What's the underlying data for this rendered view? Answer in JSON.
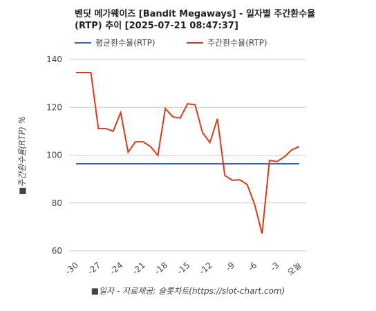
{
  "chart_data": {
    "type": "line",
    "title": "벤딧 메가웨이즈 [Bandit Megaways] - 일자별 주간환수율(RTP) 추이 [2025-07-21 08:47:37]",
    "y_label": "■주간환수율(RTP) %",
    "x_label": "■일자 - 자료제공: 슬롯차트(https://slot-chart.com)",
    "categories": [
      "-30",
      null,
      null,
      "-27",
      null,
      null,
      "-24",
      null,
      null,
      "-21",
      null,
      null,
      "-18",
      null,
      null,
      "-15",
      null,
      null,
      "-12",
      null,
      null,
      "-9",
      null,
      null,
      "-6",
      null,
      null,
      "-3",
      null,
      null,
      "오늘"
    ],
    "series": [
      {
        "name": "평균환수율(RTP)",
        "color": "#3366cc",
        "values": [
          96.4,
          96.4,
          96.4,
          96.4,
          96.4,
          96.4,
          96.4,
          96.4,
          96.4,
          96.4,
          96.4,
          96.4,
          96.4,
          96.4,
          96.4,
          96.4,
          96.4,
          96.4,
          96.4,
          96.4,
          96.4,
          96.4,
          96.4,
          96.4,
          96.4,
          96.4,
          96.4,
          96.4,
          96.4,
          96.4,
          96.4
        ]
      },
      {
        "name": "주간환수율(RTP)",
        "color": "#dc3912",
        "values": [
          134.5,
          134.5,
          134.5,
          111.1,
          111.1,
          110,
          117.8,
          101.3,
          105.6,
          105.6,
          103.6,
          99.9,
          119.5,
          116,
          115.5,
          121.5,
          121,
          109.4,
          105.3,
          115.2,
          91.5,
          89.5,
          89.7,
          87.7,
          79.4,
          67.2,
          97.8,
          97.3,
          99.3,
          102.2,
          103.6
        ]
      }
    ],
    "ylim": [
      60,
      140
    ],
    "yticks": [
      60,
      80,
      100,
      120,
      140
    ],
    "grid": true,
    "legend": "top"
  }
}
